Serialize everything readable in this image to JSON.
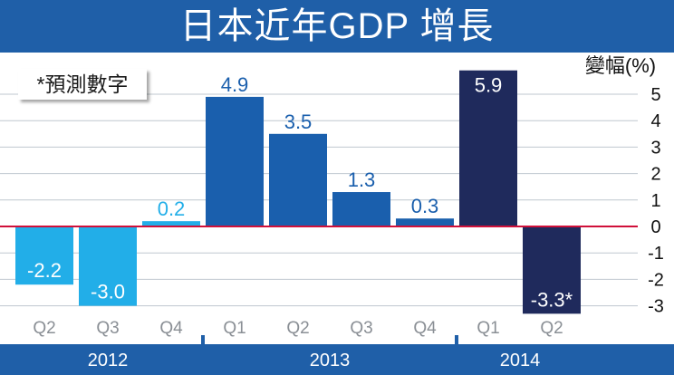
{
  "title": "日本近年GDP 增長",
  "note": "*預測數字",
  "colors": {
    "title_band": "#1f5fa8",
    "year_band": "#1f5fa8",
    "series_2012": "#22aee8",
    "series_2013": "#1a5fad",
    "series_2014": "#1f2a5c",
    "zero_line": "#d0103a",
    "grid": "#bfc7cf",
    "plot_bg": "#ffffff"
  },
  "chart_data": {
    "type": "bar",
    "title": "日本近年GDP 增長",
    "ylabel": "變幅(%)",
    "ylim": [
      -3.5,
      5.5
    ],
    "yticks": [
      5,
      4,
      3,
      2,
      1,
      0,
      -1,
      -2,
      -3
    ],
    "grid": true,
    "categories": [
      "Q2",
      "Q3",
      "Q4",
      "Q1",
      "Q2",
      "Q3",
      "Q4",
      "Q1",
      "Q2"
    ],
    "years": [
      {
        "label": "2012",
        "count": 3
      },
      {
        "label": "2013",
        "count": 4
      },
      {
        "label": "2014",
        "count": 2
      }
    ],
    "values": [
      -2.2,
      -3.0,
      0.2,
      4.9,
      3.5,
      1.3,
      0.3,
      5.9,
      -3.3
    ],
    "value_labels": [
      "-2.2",
      "-3.0",
      "0.2",
      "4.9",
      "3.5",
      "1.3",
      "0.3",
      "5.9",
      "-3.3*"
    ],
    "year_of_bar": [
      "2012",
      "2012",
      "2012",
      "2013",
      "2013",
      "2013",
      "2013",
      "2014",
      "2014"
    ]
  }
}
